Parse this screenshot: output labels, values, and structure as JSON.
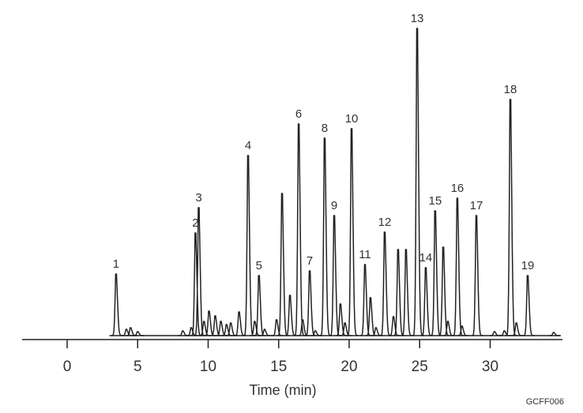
{
  "chart_data": {
    "type": "line",
    "title": "",
    "xlabel": "Time (min)",
    "ylabel": "",
    "xlim": [
      -3.2,
      35.5
    ],
    "ylim": [
      0,
      400
    ],
    "x_ticks": [
      0,
      5,
      10,
      15,
      20,
      25,
      30
    ],
    "x_tick_labels": [
      "0",
      "5",
      "10",
      "15",
      "20",
      "25",
      "30"
    ],
    "grid": false,
    "code": "GCFF006",
    "trace_range": [
      3.0,
      35.0
    ],
    "peaks": [
      {
        "label": "1",
        "time": 3.47,
        "height": 78
      },
      {
        "label": "2",
        "time": 9.1,
        "height": 130
      },
      {
        "label": "3",
        "time": 9.33,
        "height": 162
      },
      {
        "label": "4",
        "time": 12.83,
        "height": 228
      },
      {
        "label": "5",
        "time": 13.6,
        "height": 76
      },
      {
        "label": "6",
        "time": 16.42,
        "height": 268
      },
      {
        "label": "7",
        "time": 17.2,
        "height": 82
      },
      {
        "label": "8",
        "time": 18.26,
        "height": 250
      },
      {
        "label": "9",
        "time": 18.94,
        "height": 152
      },
      {
        "label": "10",
        "time": 20.17,
        "height": 262
      },
      {
        "label": "11",
        "time": 21.12,
        "height": 90
      },
      {
        "label": "12",
        "time": 22.52,
        "height": 131
      },
      {
        "label": "13",
        "time": 24.82,
        "height": 389
      },
      {
        "label": "14",
        "time": 25.43,
        "height": 86
      },
      {
        "label": "15",
        "time": 26.1,
        "height": 158
      },
      {
        "label": "16",
        "time": 27.67,
        "height": 174
      },
      {
        "label": "17",
        "time": 29.02,
        "height": 152
      },
      {
        "label": "18",
        "time": 31.43,
        "height": 299
      },
      {
        "label": "19",
        "time": 32.66,
        "height": 76
      }
    ],
    "minor_peaks": [
      {
        "time": 4.2,
        "height": 8
      },
      {
        "time": 4.5,
        "height": 10
      },
      {
        "time": 5.0,
        "height": 5
      },
      {
        "time": 8.2,
        "height": 6
      },
      {
        "time": 8.8,
        "height": 10
      },
      {
        "time": 9.7,
        "height": 18
      },
      {
        "time": 10.06,
        "height": 31
      },
      {
        "time": 10.5,
        "height": 25
      },
      {
        "time": 10.9,
        "height": 18
      },
      {
        "time": 11.3,
        "height": 14
      },
      {
        "time": 11.6,
        "height": 16
      },
      {
        "time": 12.19,
        "height": 30
      },
      {
        "time": 13.3,
        "height": 18
      },
      {
        "time": 14.0,
        "height": 8
      },
      {
        "time": 14.85,
        "height": 20
      },
      {
        "time": 15.24,
        "height": 180
      },
      {
        "time": 15.8,
        "height": 51
      },
      {
        "time": 16.7,
        "height": 20
      },
      {
        "time": 17.6,
        "height": 6
      },
      {
        "time": 19.38,
        "height": 40
      },
      {
        "time": 19.7,
        "height": 16
      },
      {
        "time": 21.51,
        "height": 48
      },
      {
        "time": 21.9,
        "height": 10
      },
      {
        "time": 23.14,
        "height": 24
      },
      {
        "time": 23.47,
        "height": 109
      },
      {
        "time": 24.03,
        "height": 109
      },
      {
        "time": 26.67,
        "height": 112
      },
      {
        "time": 27.0,
        "height": 18
      },
      {
        "time": 28.0,
        "height": 12
      },
      {
        "time": 30.3,
        "height": 5
      },
      {
        "time": 31.0,
        "height": 6
      },
      {
        "time": 31.85,
        "height": 16
      },
      {
        "time": 34.5,
        "height": 4
      }
    ]
  }
}
